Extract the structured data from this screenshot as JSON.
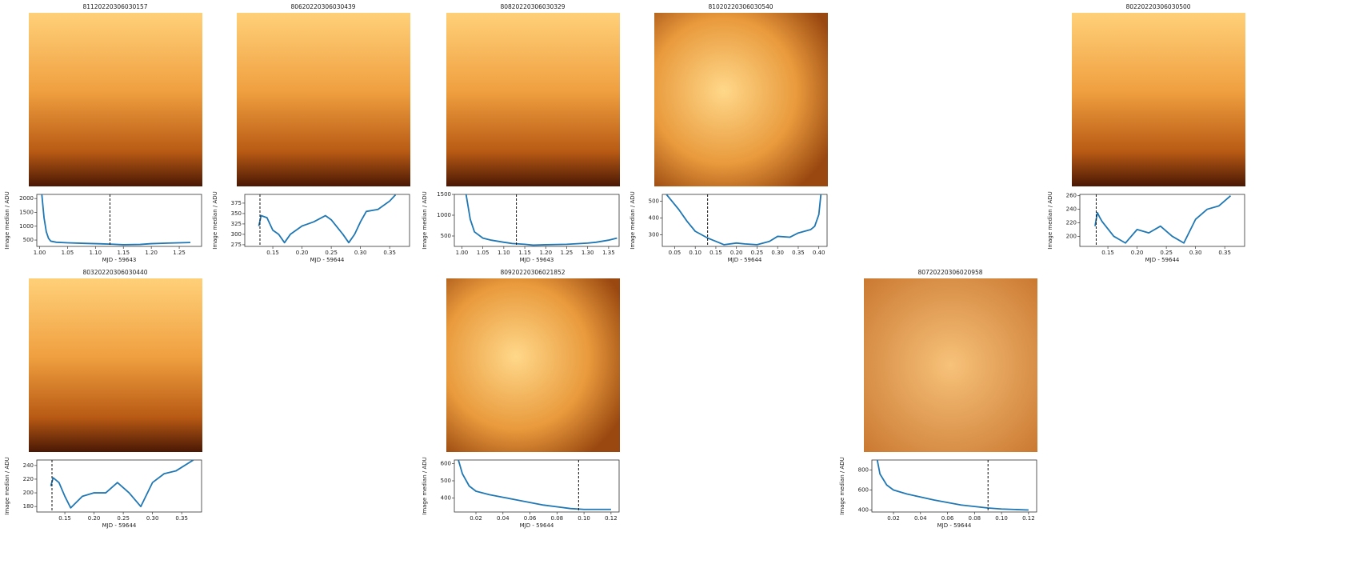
{
  "chart_data": [
    {
      "type": "line",
      "title": "81120220306030157",
      "xlabel": "MJD - 59643",
      "ylabel": "Image median / ADU",
      "color": "#1f77b4",
      "x": [
        1.004,
        1.008,
        1.012,
        1.016,
        1.02,
        1.03,
        1.05,
        1.08,
        1.1,
        1.13,
        1.15,
        1.18,
        1.2,
        1.23,
        1.25,
        1.27
      ],
      "values": [
        2150,
        1300,
        800,
        560,
        460,
        420,
        400,
        380,
        370,
        350,
        330,
        340,
        370,
        390,
        400,
        410
      ],
      "vline": 1.126,
      "xlim": [
        0.995,
        1.29
      ],
      "ylim": [
        270,
        2150
      ],
      "xticks": [
        {
          "value": 1,
          "label": "1.00"
        },
        1.05,
        {
          "value": 1.1,
          "label": "1.10"
        },
        1.15,
        {
          "value": 1.2,
          "label": "1.20"
        },
        1.25
      ],
      "yticks": [
        500,
        1000,
        1500,
        2000
      ]
    },
    {
      "type": "line",
      "title": "80620220306030439",
      "xlabel": "MJD - 59644",
      "ylabel": "Image median / ADU",
      "color": "#1f77b4",
      "x": [
        0.126,
        0.13,
        0.14,
        0.15,
        0.16,
        0.17,
        0.18,
        0.2,
        0.22,
        0.24,
        0.25,
        0.27,
        0.28,
        0.29,
        0.3,
        0.31,
        0.33,
        0.35,
        0.36
      ],
      "values": [
        320,
        345,
        340,
        310,
        300,
        280,
        300,
        320,
        330,
        345,
        335,
        300,
        280,
        300,
        330,
        355,
        360,
        380,
        395
      ],
      "vline": 0.128,
      "xlim": [
        0.102,
        0.384
      ],
      "ylim": [
        271,
        396
      ],
      "xticks": [
        0.15,
        {
          "value": 0.2,
          "label": "0.20"
        },
        0.25,
        {
          "value": 0.3,
          "label": "0.30"
        },
        0.35
      ],
      "yticks": [
        275,
        300,
        325,
        350,
        375
      ]
    },
    {
      "type": "line",
      "title": "80820220306030329",
      "xlabel": "MJD - 59643",
      "ylabel": "Image median / ADU",
      "color": "#1f77b4",
      "x": [
        1.01,
        1.02,
        1.03,
        1.05,
        1.07,
        1.1,
        1.12,
        1.15,
        1.17,
        1.2,
        1.25,
        1.3,
        1.32,
        1.35,
        1.37
      ],
      "values": [
        1500,
        900,
        600,
        450,
        400,
        350,
        320,
        300,
        280,
        290,
        300,
        330,
        350,
        400,
        450
      ],
      "vline": 1.13,
      "xlim": [
        0.982,
        1.375
      ],
      "ylim": [
        250,
        1500
      ],
      "xticks": [
        {
          "value": 1,
          "label": "1.00"
        },
        1.05,
        {
          "value": 1.1,
          "label": "1.10"
        },
        1.15,
        {
          "value": 1.2,
          "label": "1.20"
        },
        1.25,
        {
          "value": 1.3,
          "label": "1.30"
        },
        1.35
      ],
      "yticks": [
        500,
        1000,
        1500
      ]
    },
    {
      "type": "line",
      "title": "81020220306030540",
      "xlabel": "MJD - 59644",
      "ylabel": "Image median / ADU",
      "color": "#1f77b4",
      "x": [
        0.03,
        0.06,
        0.08,
        0.1,
        0.13,
        0.15,
        0.17,
        0.2,
        0.22,
        0.25,
        0.28,
        0.3,
        0.33,
        0.35,
        0.38,
        0.39,
        0.4,
        0.405
      ],
      "values": [
        540,
        450,
        380,
        320,
        280,
        260,
        240,
        250,
        245,
        240,
        260,
        290,
        285,
        310,
        330,
        350,
        420,
        540
      ],
      "vline": 0.13,
      "xlim": [
        0.02,
        0.42
      ],
      "ylim": [
        230,
        540
      ],
      "xticks": [
        0.05,
        {
          "value": 0.1,
          "label": "0.10"
        },
        0.15,
        {
          "value": 0.2,
          "label": "0.20"
        },
        0.25,
        {
          "value": 0.3,
          "label": "0.30"
        },
        0.35,
        {
          "value": 0.4,
          "label": "0.40"
        }
      ],
      "yticks": [
        300,
        400,
        500
      ]
    },
    {
      "type": "line",
      "title": "80220220306030500",
      "xlabel": "MJD - 59644",
      "ylabel": "Image median / ADU",
      "color": "#1f77b4",
      "x": [
        0.128,
        0.132,
        0.136,
        0.14,
        0.16,
        0.18,
        0.2,
        0.22,
        0.24,
        0.26,
        0.28,
        0.3,
        0.32,
        0.34,
        0.36
      ],
      "values": [
        215,
        235,
        228,
        222,
        200,
        190,
        210,
        205,
        215,
        200,
        190,
        225,
        240,
        245,
        260
      ],
      "vline": 0.13,
      "xlim": [
        0.102,
        0.384
      ],
      "ylim": [
        185,
        262
      ],
      "xticks": [
        0.15,
        {
          "value": 0.2,
          "label": "0.20"
        },
        0.25,
        {
          "value": 0.3,
          "label": "0.30"
        },
        0.35
      ],
      "yticks": [
        200,
        220,
        240,
        260
      ]
    },
    {
      "type": "line",
      "title": "80320220306030440",
      "xlabel": "MJD - 59644",
      "ylabel": "Image median / ADU",
      "color": "#1f77b4",
      "x": [
        0.126,
        0.13,
        0.14,
        0.15,
        0.16,
        0.18,
        0.2,
        0.22,
        0.24,
        0.26,
        0.28,
        0.3,
        0.32,
        0.34,
        0.37
      ],
      "values": [
        210,
        222,
        215,
        195,
        178,
        195,
        200,
        200,
        215,
        200,
        180,
        215,
        228,
        232,
        248
      ],
      "vline": 0.128,
      "xlim": [
        0.102,
        0.384
      ],
      "ylim": [
        172,
        248
      ],
      "xticks": [
        0.15,
        {
          "value": 0.2,
          "label": "0.20"
        },
        0.25,
        {
          "value": 0.3,
          "label": "0.30"
        },
        0.35
      ],
      "yticks": [
        180,
        200,
        220,
        240
      ]
    },
    {
      "type": "line",
      "title": "80920220306021852",
      "xlabel": "MJD - 59644",
      "ylabel": "Image median / ADU",
      "color": "#1f77b4",
      "x": [
        0.007,
        0.01,
        0.015,
        0.02,
        0.03,
        0.04,
        0.05,
        0.06,
        0.07,
        0.08,
        0.09,
        0.1,
        0.11,
        0.12
      ],
      "values": [
        620,
        540,
        470,
        440,
        420,
        405,
        390,
        375,
        360,
        350,
        340,
        335,
        335,
        335
      ],
      "vline": 0.096,
      "xlim": [
        0.004,
        0.126
      ],
      "ylim": [
        320,
        620
      ],
      "xticks": [
        0.02,
        0.04,
        0.06,
        0.08,
        {
          "value": 0.1,
          "label": "0.10"
        },
        0.12
      ],
      "yticks": [
        400,
        500,
        600
      ]
    },
    {
      "type": "line",
      "title": "80720220306020958",
      "xlabel": "MJD - 59644",
      "ylabel": "Image median / ADU",
      "color": "#1f77b4",
      "x": [
        0.008,
        0.01,
        0.015,
        0.02,
        0.03,
        0.04,
        0.05,
        0.06,
        0.07,
        0.08,
        0.09,
        0.1,
        0.11,
        0.12
      ],
      "values": [
        900,
        760,
        650,
        600,
        560,
        530,
        500,
        475,
        450,
        435,
        420,
        410,
        405,
        400
      ],
      "vline": 0.09,
      "xlim": [
        0.004,
        0.126
      ],
      "ylim": [
        380,
        900
      ],
      "xticks": [
        0.02,
        0.04,
        0.06,
        0.08,
        {
          "value": 0.1,
          "label": "0.10"
        },
        0.12
      ],
      "yticks": [
        400,
        600,
        800
      ]
    }
  ]
}
